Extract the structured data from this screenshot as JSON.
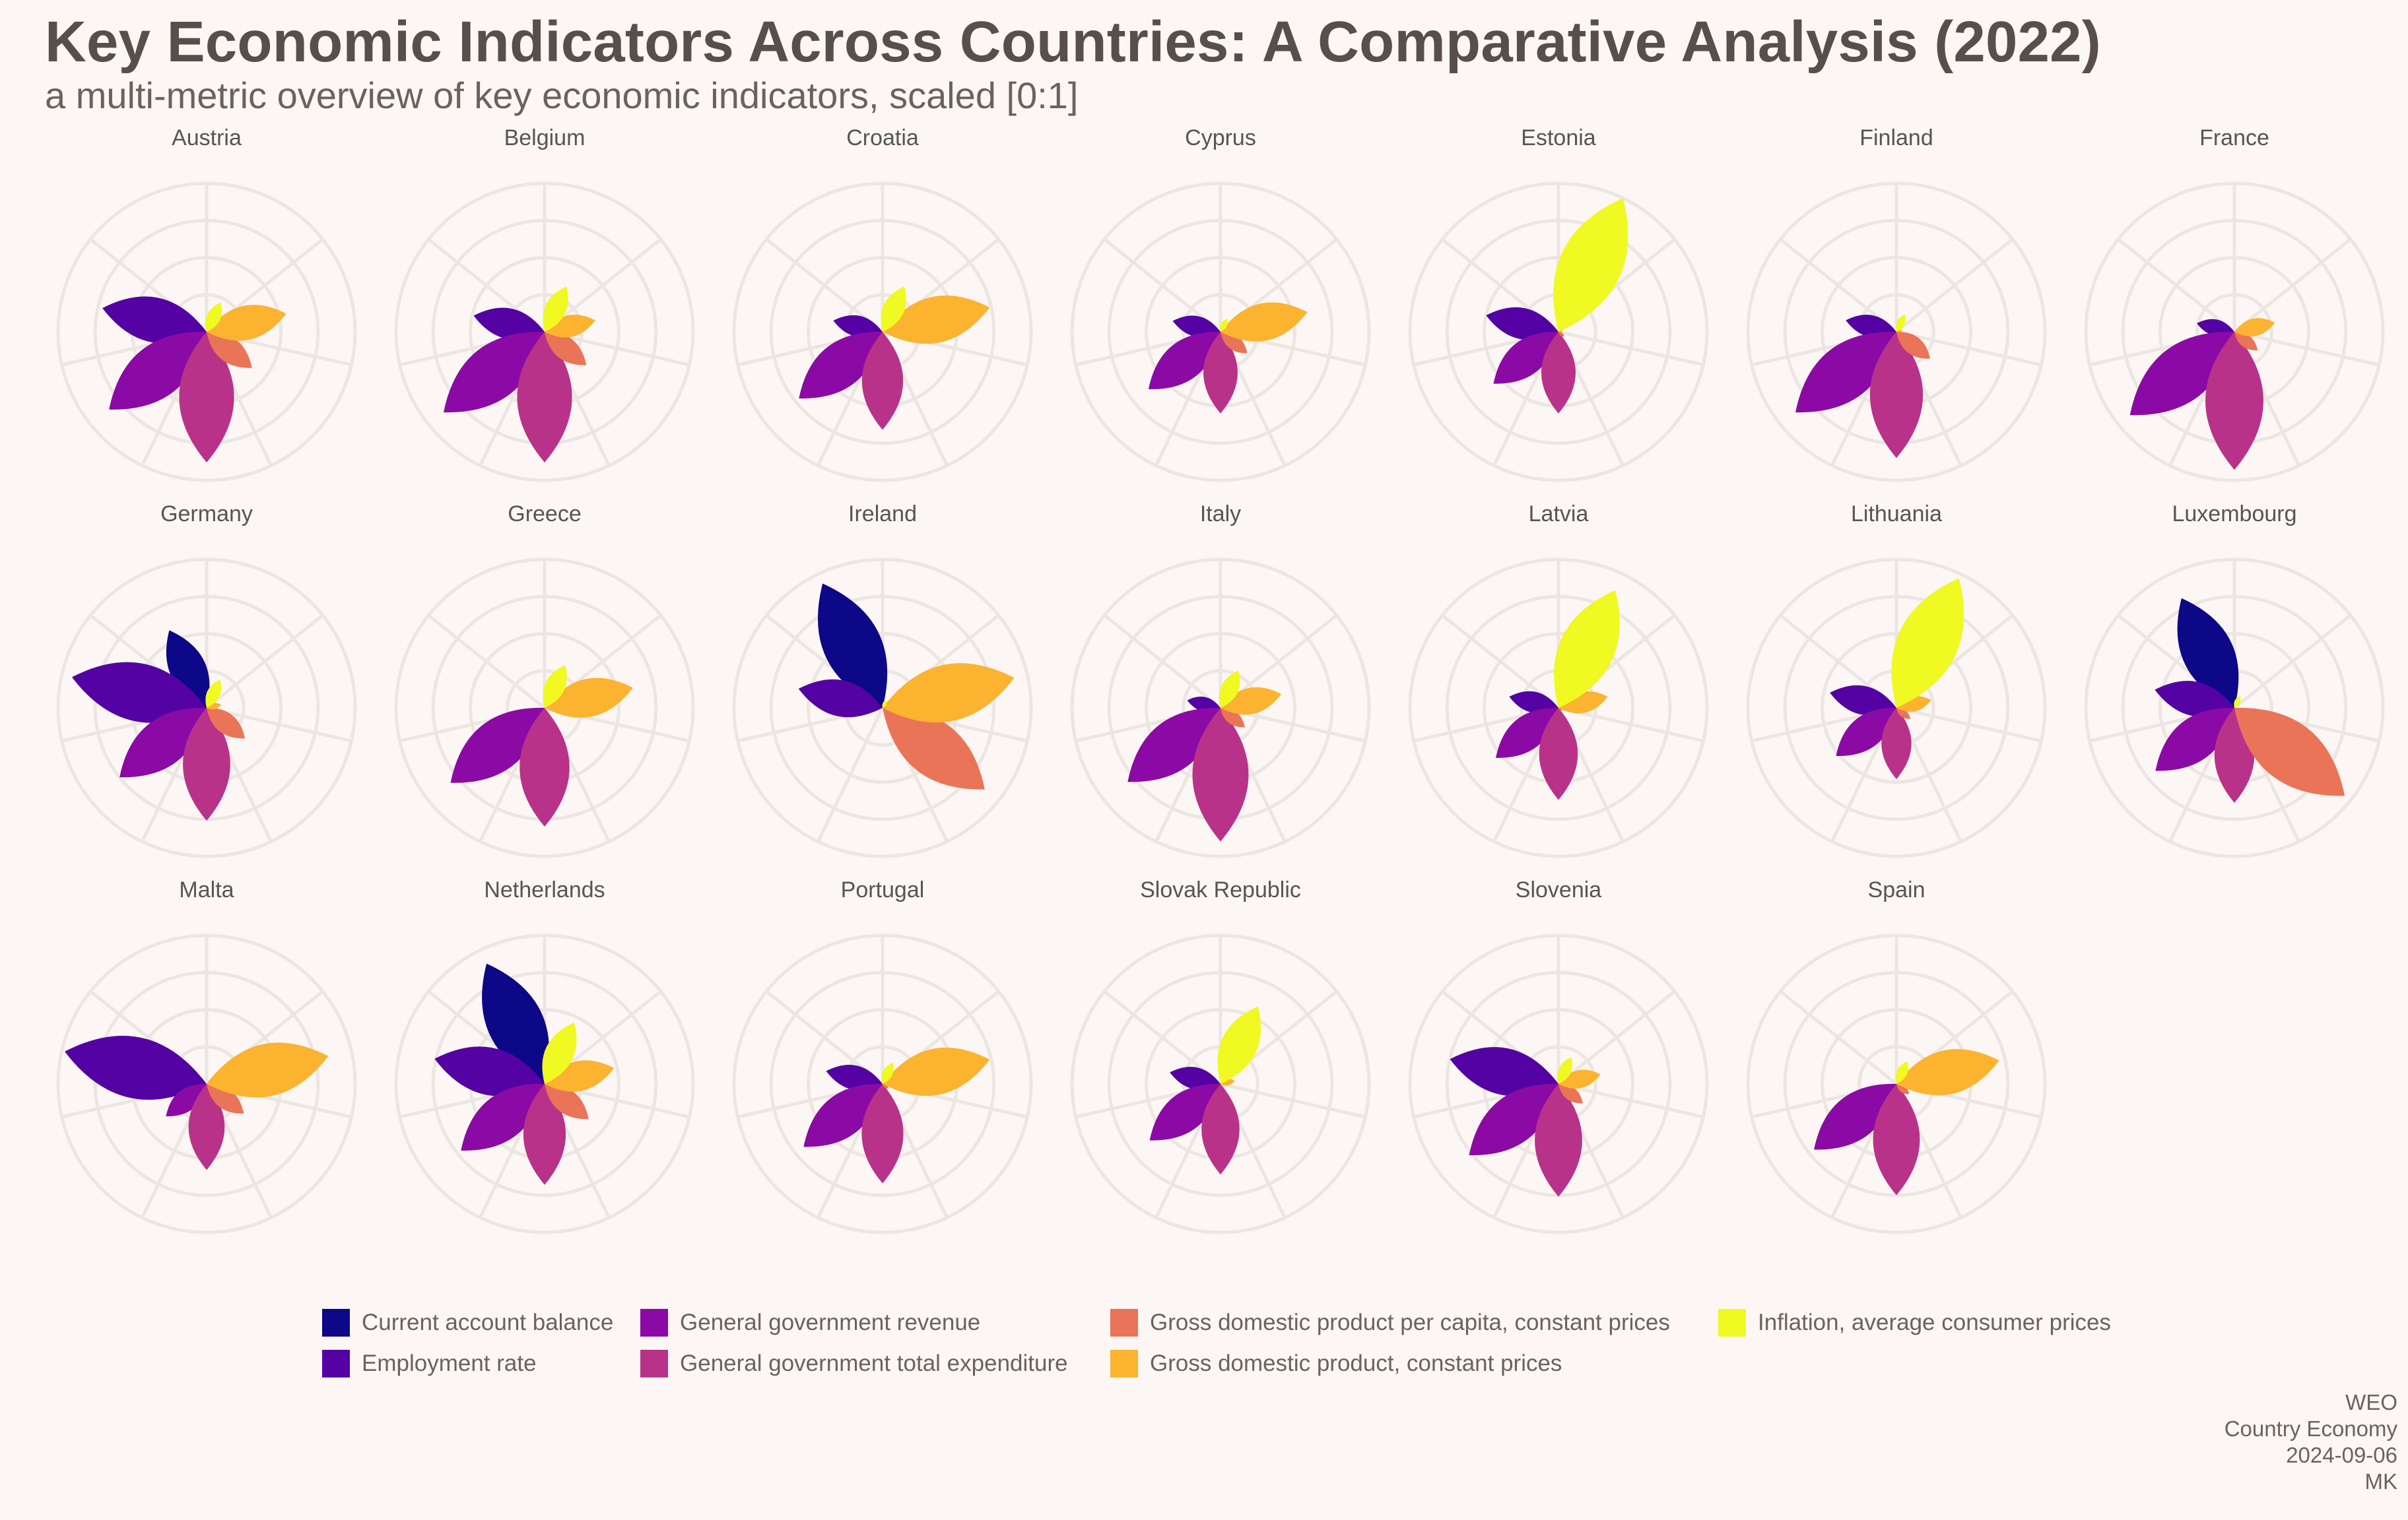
{
  "title": "Key Economic Indicators Across Countries: A Comparative Analysis (2022)",
  "subtitle": "a multi-metric overview of key economic indicators, scaled [0:1]",
  "caption": [
    "WEO",
    "Country Economy",
    "2024-09-06",
    "MK"
  ],
  "chart_data": {
    "type": "polar-petal",
    "value_range": [
      0,
      1
    ],
    "grid": true,
    "legend_position": "bottom",
    "indicators": [
      {
        "name": "Current account balance",
        "color": "#0d0887"
      },
      {
        "name": "Employment rate",
        "color": "#5402a3"
      },
      {
        "name": "General government revenue",
        "color": "#8b0aa5"
      },
      {
        "name": "General government total expenditure",
        "color": "#b93289"
      },
      {
        "name": "Gross domestic product per capita, constant prices",
        "color": "#ea7457"
      },
      {
        "name": "Gross domestic product, constant prices",
        "color": "#fbb330"
      },
      {
        "name": "Inflation, average consumer prices",
        "color": "#f0f921"
      }
    ],
    "countries": [
      {
        "name": "Austria",
        "values": [
          0.0,
          0.72,
          0.84,
          0.88,
          0.39,
          0.55,
          0.22
        ]
      },
      {
        "name": "Belgium",
        "values": [
          0.0,
          0.49,
          0.87,
          0.88,
          0.36,
          0.35,
          0.34
        ]
      },
      {
        "name": "Croatia",
        "values": [
          0.0,
          0.34,
          0.72,
          0.66,
          0.0,
          0.74,
          0.34
        ]
      },
      {
        "name": "Cyprus",
        "values": [
          0.0,
          0.33,
          0.62,
          0.55,
          0.23,
          0.6,
          0.1
        ]
      },
      {
        "name": "Estonia",
        "values": [
          0.0,
          0.5,
          0.56,
          0.55,
          0.05,
          0.03,
          1.0
        ]
      },
      {
        "name": "Finland",
        "values": [
          0.0,
          0.35,
          0.87,
          0.85,
          0.29,
          0.04,
          0.13
        ]
      },
      {
        "name": "France",
        "values": [
          0.0,
          0.26,
          0.9,
          0.93,
          0.2,
          0.28,
          0.0
        ]
      },
      {
        "name": "Germany",
        "values": [
          0.58,
          0.93,
          0.75,
          0.76,
          0.33,
          0.1,
          0.21
        ]
      },
      {
        "name": "Greece",
        "values": [
          0.0,
          0.0,
          0.81,
          0.8,
          0.0,
          0.61,
          0.32
        ]
      },
      {
        "name": "Ireland",
        "values": [
          0.93,
          0.58,
          0.0,
          0.0,
          0.88,
          0.91,
          0.06
        ]
      },
      {
        "name": "Italy",
        "values": [
          0.0,
          0.23,
          0.8,
          0.9,
          0.21,
          0.42,
          0.28
        ]
      },
      {
        "name": "Latvia",
        "values": [
          0.0,
          0.34,
          0.54,
          0.62,
          0.03,
          0.34,
          0.88
        ]
      },
      {
        "name": "Lithuania",
        "values": [
          0.0,
          0.46,
          0.52,
          0.48,
          0.12,
          0.24,
          0.97
        ]
      },
      {
        "name": "Luxembourg",
        "values": [
          0.82,
          0.55,
          0.68,
          0.64,
          0.95,
          0.0,
          0.09
        ]
      },
      {
        "name": "Malta",
        "values": [
          0.0,
          0.98,
          0.35,
          0.58,
          0.32,
          0.84,
          0.0
        ]
      },
      {
        "name": "Netherlands",
        "values": [
          0.9,
          0.76,
          0.72,
          0.68,
          0.38,
          0.48,
          0.46
        ]
      },
      {
        "name": "Portugal",
        "values": [
          0.0,
          0.39,
          0.68,
          0.67,
          0.05,
          0.74,
          0.16
        ]
      },
      {
        "name": "Slovak Republic",
        "values": [
          0.0,
          0.35,
          0.61,
          0.61,
          0.0,
          0.1,
          0.58
        ]
      },
      {
        "name": "Slovenia",
        "values": [
          0.0,
          0.75,
          0.77,
          0.76,
          0.21,
          0.29,
          0.2
        ]
      },
      {
        "name": "Spain",
        "values": [
          0.0,
          0.0,
          0.71,
          0.75,
          0.11,
          0.71,
          0.17
        ]
      }
    ]
  }
}
